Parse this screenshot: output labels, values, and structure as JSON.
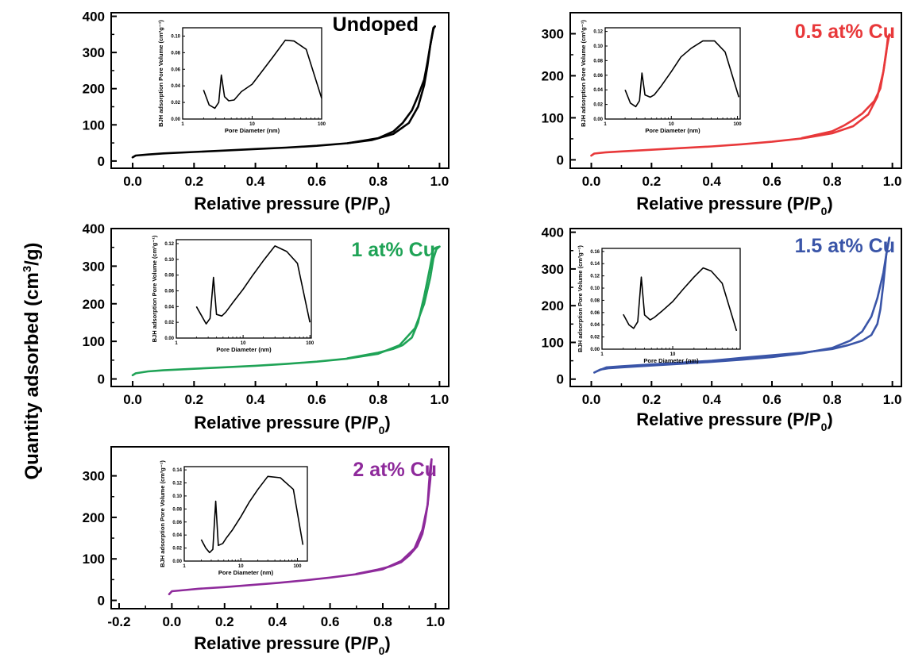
{
  "figure": {
    "y_axis_label": "Quantity adsorbed (cm",
    "y_axis_label_sup": "3",
    "y_axis_label_end": "/g)"
  },
  "chart_data": [
    {
      "type": "line",
      "title": "Undoped",
      "title_color": "#000000",
      "line_color": "#000000",
      "xlabel": "Relative pressure (P/P",
      "xlabel_sub": "0",
      "xlabel_end": ")",
      "xlim": [
        -0.07,
        1.03
      ],
      "ylim": [
        -20,
        410
      ],
      "xticks": [
        0.0,
        0.2,
        0.4,
        0.6,
        0.8,
        1.0
      ],
      "xtick_labels": [
        "0.0",
        "0.2",
        "0.4",
        "0.6",
        "0.8",
        "1.0"
      ],
      "yticks": [
        0,
        100,
        200,
        300,
        400
      ],
      "ytick_labels": [
        "0",
        "100",
        "200",
        "300",
        "400"
      ],
      "series": [
        {
          "branch": "adsorption",
          "x": [
            0.0,
            0.01,
            0.05,
            0.1,
            0.2,
            0.3,
            0.4,
            0.5,
            0.6,
            0.7,
            0.78,
            0.85,
            0.9,
            0.93,
            0.95,
            0.96,
            0.97,
            0.98,
            0.985
          ],
          "y": [
            10,
            15,
            18,
            21,
            25,
            29,
            33,
            37,
            42,
            49,
            58,
            75,
            105,
            150,
            210,
            260,
            320,
            365,
            372
          ]
        },
        {
          "branch": "desorption",
          "x": [
            0.985,
            0.98,
            0.975,
            0.97,
            0.96,
            0.95,
            0.93,
            0.91,
            0.88,
            0.85,
            0.8,
            0.7
          ],
          "y": [
            372,
            368,
            345,
            320,
            270,
            225,
            180,
            140,
            105,
            82,
            63,
            49
          ]
        }
      ],
      "inset": {
        "xlabel": "Pore Diameter (nm)",
        "ylabel": "BJH adsorption Pore Volume  (cm³g⁻¹)",
        "xscale": "log",
        "xlim": [
          1,
          100
        ],
        "ylim": [
          0.0,
          0.11
        ],
        "xticks": [
          1,
          10,
          100
        ],
        "xtick_labels": [
          "1",
          "10",
          "100"
        ],
        "yticks": [
          0.0,
          0.02,
          0.04,
          0.06,
          0.08,
          0.1
        ],
        "ytick_labels": [
          "0.00",
          "0.02",
          "0.04",
          "0.06",
          "0.08",
          "0.10"
        ],
        "x": [
          2.0,
          2.4,
          2.9,
          3.3,
          3.6,
          4.0,
          4.6,
          5.5,
          7,
          10,
          14,
          20,
          30,
          40,
          60,
          100
        ],
        "y": [
          0.035,
          0.017,
          0.013,
          0.02,
          0.053,
          0.027,
          0.022,
          0.023,
          0.033,
          0.042,
          0.058,
          0.075,
          0.095,
          0.094,
          0.084,
          0.025
        ]
      }
    },
    {
      "type": "line",
      "title": "0.5 at% Cu",
      "title_color": "#e8383a",
      "line_color": "#e8383a",
      "xlabel": "Relative pressure (P/P",
      "xlabel_sub": "0",
      "xlabel_end": ")",
      "xlim": [
        -0.07,
        1.03
      ],
      "ylim": [
        -20,
        350
      ],
      "xticks": [
        0.0,
        0.2,
        0.4,
        0.6,
        0.8,
        1.0
      ],
      "xtick_labels": [
        "0.0",
        "0.2",
        "0.4",
        "0.6",
        "0.8",
        "1.0"
      ],
      "yticks": [
        0,
        100,
        200,
        300
      ],
      "ytick_labels": [
        "0",
        "100",
        "200",
        "300"
      ],
      "series": [
        {
          "branch": "adsorption",
          "x": [
            0.0,
            0.01,
            0.05,
            0.1,
            0.2,
            0.3,
            0.4,
            0.5,
            0.6,
            0.7,
            0.8,
            0.87,
            0.92,
            0.95,
            0.97,
            0.98,
            0.99
          ],
          "y": [
            10,
            15,
            18,
            20,
            24,
            28,
            32,
            37,
            43,
            51,
            63,
            80,
            108,
            150,
            210,
            260,
            298
          ]
        },
        {
          "branch": "desorption",
          "x": [
            0.99,
            0.985,
            0.98,
            0.97,
            0.96,
            0.94,
            0.92,
            0.9,
            0.87,
            0.84,
            0.8,
            0.7
          ],
          "y": [
            298,
            290,
            255,
            210,
            170,
            140,
            125,
            110,
            95,
            82,
            68,
            52
          ]
        }
      ],
      "inset": {
        "xlabel": "Pore Diameter (nm)",
        "ylabel": "BJH adsorption Pore Volume  (cm³g⁻¹)",
        "xscale": "log",
        "xlim": [
          1,
          110
        ],
        "ylim": [
          0.0,
          0.125
        ],
        "xticks": [
          1,
          10,
          100
        ],
        "xtick_labels": [
          "1",
          "10",
          "100"
        ],
        "yticks": [
          0.0,
          0.02,
          0.04,
          0.06,
          0.08,
          0.1,
          0.12
        ],
        "ytick_labels": [
          "0.00",
          "0.02",
          "0.04",
          "0.06",
          "0.08",
          "0.10",
          "0.12"
        ],
        "x": [
          2.0,
          2.4,
          2.9,
          3.3,
          3.6,
          4.0,
          4.8,
          5.5,
          7,
          10,
          14,
          20,
          30,
          45,
          65,
          105
        ],
        "y": [
          0.04,
          0.022,
          0.017,
          0.025,
          0.063,
          0.033,
          0.03,
          0.033,
          0.045,
          0.065,
          0.085,
          0.097,
          0.107,
          0.107,
          0.092,
          0.03
        ]
      }
    },
    {
      "type": "line",
      "title": "1 at% Cu",
      "title_color": "#1fa356",
      "line_color": "#1fa356",
      "xlabel": "Relative pressure (P/P",
      "xlabel_sub": "0",
      "xlabel_end": ")",
      "xlim": [
        -0.07,
        1.03
      ],
      "ylim": [
        -20,
        400
      ],
      "xticks": [
        0.0,
        0.2,
        0.4,
        0.6,
        0.8,
        1.0
      ],
      "xtick_labels": [
        "0.0",
        "0.2",
        "0.4",
        "0.6",
        "0.8",
        "1.0"
      ],
      "yticks": [
        0,
        100,
        200,
        300,
        400
      ],
      "ytick_labels": [
        "0",
        "100",
        "200",
        "300",
        "400"
      ],
      "series": [
        {
          "branch": "adsorption",
          "x": [
            0.0,
            0.01,
            0.05,
            0.1,
            0.2,
            0.3,
            0.4,
            0.5,
            0.6,
            0.7,
            0.8,
            0.87,
            0.92,
            0.95,
            0.97,
            0.98,
            0.99,
            1.0
          ],
          "y": [
            10,
            15,
            20,
            23,
            27,
            31,
            35,
            40,
            46,
            54,
            67,
            90,
            135,
            200,
            270,
            320,
            345,
            352
          ]
        },
        {
          "branch": "desorption",
          "x": [
            1.0,
            0.99,
            0.98,
            0.97,
            0.96,
            0.95,
            0.94,
            0.93,
            0.91,
            0.88,
            0.85,
            0.8,
            0.7
          ],
          "y": [
            352,
            350,
            345,
            300,
            260,
            220,
            185,
            150,
            110,
            90,
            80,
            70,
            55
          ]
        }
      ],
      "inset": {
        "xlabel": "Pore Diameter (nm)",
        "ylabel": "BJH adsorption Pore Volume  (cm³g⁻¹)",
        "xscale": "log",
        "xlim": [
          1,
          105
        ],
        "ylim": [
          0.0,
          0.125
        ],
        "xticks": [
          1,
          10,
          100
        ],
        "xtick_labels": [
          "1",
          "10",
          "100"
        ],
        "yticks": [
          0.0,
          0.02,
          0.04,
          0.06,
          0.08,
          0.1,
          0.12
        ],
        "ytick_labels": [
          "0.00",
          "0.02",
          "0.04",
          "0.06",
          "0.08",
          "0.10",
          "0.12"
        ],
        "x": [
          2.0,
          2.4,
          2.8,
          3.2,
          3.6,
          4.0,
          4.8,
          5.5,
          7,
          10,
          14,
          20,
          30,
          45,
          65,
          100
        ],
        "y": [
          0.04,
          0.028,
          0.018,
          0.025,
          0.077,
          0.03,
          0.028,
          0.033,
          0.045,
          0.062,
          0.08,
          0.098,
          0.117,
          0.11,
          0.095,
          0.02
        ]
      }
    },
    {
      "type": "line",
      "title": "1.5 at% Cu",
      "title_color": "#3a55a8",
      "line_color": "#3a55a8",
      "xlabel": "Relative pressure (P/P",
      "xlabel_sub": "0",
      "xlabel_end": ")",
      "xlim": [
        -0.07,
        1.03
      ],
      "ylim": [
        -20,
        410
      ],
      "xticks": [
        0.0,
        0.2,
        0.4,
        0.6,
        0.8,
        1.0
      ],
      "xtick_labels": [
        "0.0",
        "0.2",
        "0.4",
        "0.6",
        "0.8",
        "1.0"
      ],
      "yticks": [
        0,
        100,
        200,
        300,
        400
      ],
      "ytick_labels": [
        "0",
        "100",
        "200",
        "300",
        "400"
      ],
      "series": [
        {
          "branch": "adsorption",
          "x": [
            0.01,
            0.03,
            0.06,
            0.1,
            0.2,
            0.3,
            0.4,
            0.5,
            0.6,
            0.7,
            0.8,
            0.86,
            0.9,
            0.93,
            0.95,
            0.97,
            0.98,
            0.99
          ],
          "y": [
            18,
            26,
            30,
            32,
            37,
            42,
            47,
            53,
            60,
            70,
            85,
            105,
            130,
            170,
            220,
            290,
            340,
            385
          ]
        },
        {
          "branch": "desorption",
          "x": [
            0.99,
            0.98,
            0.97,
            0.96,
            0.95,
            0.93,
            0.9,
            0.85,
            0.8,
            0.7,
            0.6,
            0.5,
            0.4,
            0.3,
            0.2,
            0.1,
            0.05,
            0.02
          ],
          "y": [
            385,
            340,
            260,
            190,
            150,
            120,
            105,
            92,
            82,
            72,
            65,
            58,
            50,
            45,
            40,
            35,
            32,
            22
          ]
        }
      ],
      "inset": {
        "xlabel": "Pore Diameter (nm)",
        "ylabel": "BJH adsorption Pore Volume  (cm³g⁻¹)",
        "xscale": "log",
        "xlim": [
          1,
          90
        ],
        "ylim": [
          0.0,
          0.165
        ],
        "xticks": [
          1,
          10
        ],
        "xtick_labels": [
          "1",
          "10"
        ],
        "yticks": [
          0.0,
          0.02,
          0.04,
          0.06,
          0.08,
          0.1,
          0.12,
          0.14,
          0.16
        ],
        "ytick_labels": [
          "0.00",
          "0.02",
          "0.04",
          "0.06",
          "0.08",
          "0.10",
          "0.12",
          "0.14",
          "0.16"
        ],
        "x": [
          2.0,
          2.4,
          2.8,
          3.2,
          3.6,
          4.0,
          4.8,
          5.5,
          7,
          10,
          14,
          20,
          27,
          35,
          50,
          80
        ],
        "y": [
          0.057,
          0.04,
          0.034,
          0.045,
          0.118,
          0.056,
          0.048,
          0.052,
          0.062,
          0.078,
          0.098,
          0.118,
          0.133,
          0.128,
          0.108,
          0.03
        ]
      }
    },
    {
      "type": "line",
      "title": "2 at% Cu",
      "title_color": "#8e2a9b",
      "line_color": "#8e2a9b",
      "xlabel": "Relative pressure (P/P",
      "xlabel_sub": "0",
      "xlabel_end": ")",
      "xlim": [
        -0.23,
        1.05
      ],
      "ylim": [
        -20,
        370
      ],
      "xticks": [
        -0.2,
        0.0,
        0.2,
        0.4,
        0.6,
        0.8,
        1.0
      ],
      "xtick_labels": [
        "-0.2",
        "0.0",
        "0.2",
        "0.4",
        "0.6",
        "0.8",
        "1.0"
      ],
      "yticks": [
        0,
        100,
        200,
        300
      ],
      "ytick_labels": [
        "0",
        "100",
        "200",
        "300"
      ],
      "series": [
        {
          "branch": "adsorption",
          "x": [
            -0.01,
            0.0,
            0.05,
            0.1,
            0.2,
            0.3,
            0.4,
            0.5,
            0.6,
            0.7,
            0.8,
            0.87,
            0.92,
            0.95,
            0.97,
            0.98,
            0.985
          ],
          "y": [
            15,
            22,
            25,
            28,
            32,
            37,
            42,
            48,
            55,
            63,
            75,
            95,
            125,
            170,
            230,
            290,
            340
          ]
        },
        {
          "branch": "desorption",
          "x": [
            0.985,
            0.98,
            0.975,
            0.97,
            0.96,
            0.95,
            0.93,
            0.9,
            0.87,
            0.83,
            0.78,
            0.7
          ],
          "y": [
            340,
            320,
            280,
            230,
            190,
            160,
            130,
            108,
            92,
            82,
            74,
            64
          ]
        }
      ],
      "inset": {
        "xlabel": "Pore Diameter (nm)",
        "ylabel": "BJH adsorption Pore Volume  (cm³g⁻¹)",
        "xscale": "log",
        "xlim": [
          1,
          150
        ],
        "ylim": [
          0.0,
          0.145
        ],
        "xticks": [
          1,
          10,
          100
        ],
        "xtick_labels": [
          "1",
          "10",
          "100"
        ],
        "yticks": [
          0.0,
          0.02,
          0.04,
          0.06,
          0.08,
          0.1,
          0.12,
          0.14
        ],
        "ytick_labels": [
          "0.00",
          "0.02",
          "0.04",
          "0.06",
          "0.08",
          "0.10",
          "0.12",
          "0.14"
        ],
        "x": [
          2.0,
          2.4,
          2.8,
          3.2,
          3.6,
          4.0,
          4.8,
          5.5,
          7,
          10,
          14,
          20,
          30,
          50,
          85,
          125
        ],
        "y": [
          0.033,
          0.02,
          0.013,
          0.018,
          0.092,
          0.024,
          0.027,
          0.035,
          0.047,
          0.068,
          0.09,
          0.11,
          0.13,
          0.128,
          0.11,
          0.025
        ]
      }
    }
  ]
}
